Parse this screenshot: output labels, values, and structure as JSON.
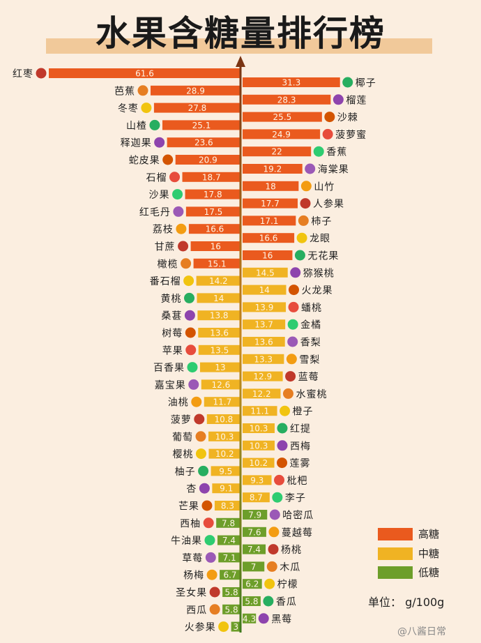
{
  "title": "水果含糖量排行榜",
  "unit_label": "单位： g/100g",
  "watermark": "@八酱日常",
  "colors": {
    "high": "#ea5a1e",
    "mid": "#f0b323",
    "low": "#6d9e2a",
    "axis": "#7a4416",
    "background": "#fbeee0"
  },
  "legend": [
    {
      "label": "高糖",
      "level": "high"
    },
    {
      "label": "中糖",
      "level": "mid"
    },
    {
      "label": "低糖",
      "level": "low"
    }
  ],
  "chart_data": {
    "type": "bar",
    "title": "水果含糖量排行榜",
    "unit": "g/100g",
    "xlim": [
      0,
      65
    ],
    "series": [
      {
        "side": "left",
        "categories": [
          "红枣",
          "芭蕉",
          "冬枣",
          "山楂",
          "释迦果",
          "蛇皮果",
          "石榴",
          "沙果",
          "红毛丹",
          "荔枝",
          "甘蔗",
          "橄榄",
          "番石榴",
          "黄桃",
          "桑葚",
          "树莓",
          "苹果",
          "百香果",
          "嘉宝果",
          "油桃",
          "菠萝",
          "葡萄",
          "樱桃",
          "柚子",
          "杏",
          "芒果",
          "西柚",
          "牛油果",
          "草莓",
          "杨梅",
          "圣女果",
          "西瓜",
          "火参果"
        ],
        "values": [
          61.6,
          28.9,
          27.8,
          25.1,
          23.6,
          20.9,
          18.7,
          17.8,
          17.5,
          16.6,
          16,
          15.1,
          14.2,
          14,
          13.8,
          13.6,
          13.5,
          13,
          12.6,
          11.7,
          10.8,
          10.3,
          10.2,
          9.5,
          9.1,
          8.3,
          7.8,
          7.4,
          7.1,
          6.7,
          5.8,
          5.8,
          3
        ],
        "levels": [
          "high",
          "high",
          "high",
          "high",
          "high",
          "high",
          "high",
          "high",
          "high",
          "high",
          "high",
          "high",
          "mid",
          "mid",
          "mid",
          "mid",
          "mid",
          "mid",
          "mid",
          "mid",
          "mid",
          "mid",
          "mid",
          "mid",
          "mid",
          "mid",
          "low",
          "low",
          "low",
          "low",
          "low",
          "low",
          "low"
        ]
      },
      {
        "side": "right",
        "categories": [
          "椰子",
          "榴莲",
          "沙棘",
          "菠萝蜜",
          "香蕉",
          "海棠果",
          "山竹",
          "人参果",
          "柿子",
          "龙眼",
          "无花果",
          "猕猴桃",
          "火龙果",
          "蟠桃",
          "金橘",
          "香梨",
          "雪梨",
          "蓝莓",
          "水蜜桃",
          "橙子",
          "红提",
          "西梅",
          "莲雾",
          "枇杷",
          "李子",
          "哈密瓜",
          "蔓越莓",
          "杨桃",
          "木瓜",
          "柠檬",
          "香瓜",
          "黑莓"
        ],
        "values": [
          31.3,
          28.3,
          25.5,
          24.9,
          22,
          19.2,
          18,
          17.7,
          17.1,
          16.6,
          16,
          14.5,
          14,
          13.9,
          13.7,
          13.6,
          13.3,
          12.9,
          12.2,
          11.1,
          10.3,
          10.3,
          10.2,
          9.3,
          8.7,
          7.9,
          7.6,
          7.4,
          7,
          6.2,
          5.8,
          4.3
        ],
        "levels": [
          "high",
          "high",
          "high",
          "high",
          "high",
          "high",
          "high",
          "high",
          "high",
          "high",
          "high",
          "mid",
          "mid",
          "mid",
          "mid",
          "mid",
          "mid",
          "mid",
          "mid",
          "mid",
          "mid",
          "mid",
          "mid",
          "mid",
          "mid",
          "low",
          "low",
          "low",
          "low",
          "low",
          "low",
          "low"
        ]
      }
    ],
    "value_labels": [
      [
        "61.6",
        "28.9",
        "27.8",
        "25.1",
        "23.6",
        "20.9",
        "18.7",
        "17.8",
        "17.5",
        "16.6",
        "16",
        "15.1",
        "14.2",
        "14",
        "13.8",
        "13.6",
        "13.5",
        "13",
        "12.6",
        "11.7",
        "10.8",
        "10.3",
        "10.2",
        "9.5",
        "9.1",
        "8.3",
        "7.8",
        "7.4",
        "7.1",
        "6.7",
        "5.8",
        "5.8",
        "3"
      ],
      [
        "31.3",
        "28.3",
        "25.5",
        "24.9",
        "22",
        "19.2",
        "18",
        "17.7",
        "17.1",
        "16.6",
        "16",
        "14.5",
        "14",
        "13.9",
        "13.7",
        "13.6",
        "13.3",
        "12.9",
        "12.2",
        "11.1",
        "10.3",
        "10.3",
        "10.2",
        "9.3",
        "8.7",
        "7.9",
        "7.6",
        "7.4",
        "7",
        "6.2",
        "5.8",
        "4.3"
      ]
    ]
  }
}
